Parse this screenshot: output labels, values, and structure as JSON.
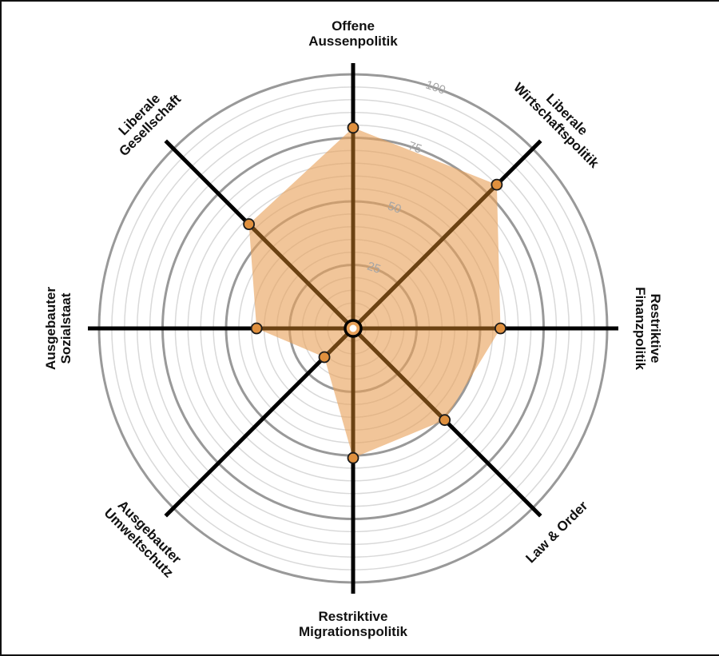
{
  "chart_data": {
    "type": "radar",
    "title": "",
    "rmax": 100,
    "ticks": [
      25,
      50,
      75,
      100
    ],
    "minor_step": 5,
    "axes": [
      {
        "label_lines": [
          "Offene",
          "Aussenpolitik"
        ]
      },
      {
        "label_lines": [
          "Liberale",
          "Wirtschaftspolitik"
        ]
      },
      {
        "label_lines": [
          "Restriktive",
          "Finanzpolitik"
        ]
      },
      {
        "label_lines": [
          "Law & Order"
        ]
      },
      {
        "label_lines": [
          "Restriktive",
          "Migrationspolitik"
        ]
      },
      {
        "label_lines": [
          "Ausgebauter",
          "Umweltschutz"
        ]
      },
      {
        "label_lines": [
          "Ausgebauter",
          "Sozialstaat"
        ]
      },
      {
        "label_lines": [
          "Liberale",
          "Gesellschaft"
        ]
      }
    ],
    "series": [
      {
        "values": [
          79,
          80,
          58,
          51,
          51,
          16,
          38,
          58
        ]
      }
    ],
    "colors": {
      "fill": "#e8a15a",
      "point": "#e0903e",
      "axis_line": "#000000",
      "major_ring": "#999999",
      "minor_ring": "#d9d9d9",
      "tick_text": "#a6a6a6",
      "axis_in_area": "#6b4213"
    }
  }
}
